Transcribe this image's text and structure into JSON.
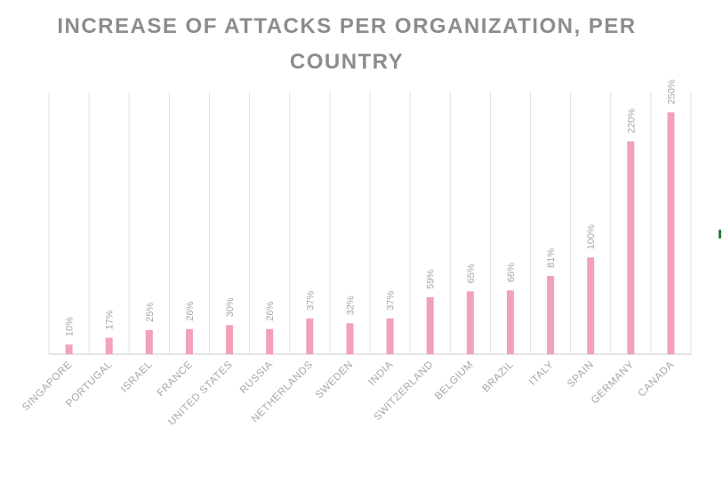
{
  "chart_data": {
    "type": "bar",
    "title": "INCREASE OF ATTACKS PER ORGANIZATION, PER COUNTRY",
    "categories": [
      "SINGAPORE",
      "PORTUGAL",
      "ISRAEL",
      "FRANCE",
      "UNITED STATES",
      "RUSSIA",
      "NETHERLANDS",
      "SWEDEN",
      "INDIA",
      "SWITZERLAND",
      "BELGIUM",
      "BRAZIL",
      "ITALY",
      "SPAIN",
      "GERMANY",
      "CANADA"
    ],
    "values": [
      10,
      17,
      25,
      26,
      30,
      26,
      37,
      32,
      37,
      59,
      65,
      66,
      81,
      100,
      220,
      250
    ],
    "data_labels": [
      "10%",
      "17%",
      "25%",
      "26%",
      "30%",
      "26%",
      "37%",
      "32%",
      "37%",
      "59%",
      "65%",
      "66%",
      "81%",
      "100%",
      "220%",
      "250%"
    ],
    "ylim": [
      0,
      300
    ],
    "value_unit": "%",
    "xlabel": "",
    "ylabel": "",
    "grid": "vertical",
    "legend": "none",
    "colors": {
      "bar": "#f2a2b8",
      "grid": "#e3e3e3",
      "axis": "#d4d4d4",
      "text": "#a6a6a6",
      "title": "#8c8c8c"
    }
  }
}
